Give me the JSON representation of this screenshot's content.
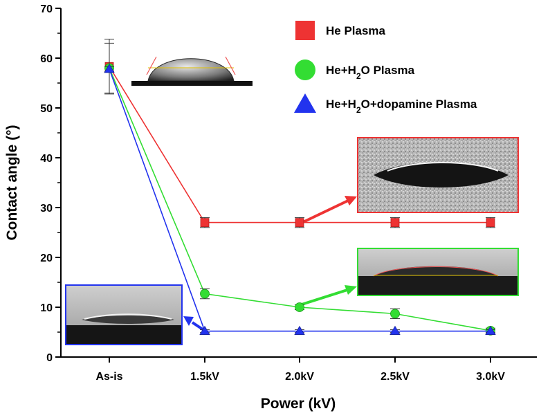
{
  "chart_data": {
    "type": "line",
    "categories": [
      "As-is",
      "1.5kV",
      "2.0kV",
      "2.5kV",
      "3.0kV"
    ],
    "xlabel": "Power (kV)",
    "ylabel": "Contact angle (°)",
    "ylim": [
      0,
      70
    ],
    "yticks": [
      "0",
      "10",
      "20",
      "30",
      "40",
      "50",
      "60",
      "70"
    ],
    "grid": false,
    "legend_position": "top-right",
    "series": [
      {
        "name": "He Plasma",
        "name_parts": [
          "He Plasma"
        ],
        "color": "#ee3333",
        "marker": "square",
        "values": [
          58.3,
          27.0,
          27.0,
          27.0,
          27.0
        ],
        "errors": [
          5.5,
          1.0,
          1.0,
          1.0,
          1.0
        ]
      },
      {
        "name": "He+H2O Plasma",
        "name_parts": [
          "He+H",
          "2",
          "O Plasma"
        ],
        "color": "#33dd33",
        "marker": "circle",
        "values": [
          58.0,
          12.7,
          10.0,
          8.7,
          5.3
        ],
        "errors": [
          5.0,
          1.0,
          0.5,
          1.0,
          0.5
        ]
      },
      {
        "name": "He+H2O+dopamine Plasma",
        "name_parts": [
          "He+H",
          "2",
          "O+dopamine Plasma"
        ],
        "color": "#2233ee",
        "marker": "triangle",
        "values": [
          57.8,
          5.2,
          5.2,
          5.2,
          5.2
        ],
        "errors": [
          0.5,
          0.3,
          0.3,
          0.3,
          0.3
        ]
      }
    ]
  },
  "insets": [
    {
      "kind": "droplet-photo-as-is",
      "border_color": "none"
    },
    {
      "kind": "droplet-photo-he-plasma",
      "border_color": "#ee3333"
    },
    {
      "kind": "droplet-photo-he-h2o-plasma",
      "border_color": "#33dd33"
    },
    {
      "kind": "droplet-photo-he-h2o-dopamine-plasma",
      "border_color": "#2233ee"
    }
  ]
}
